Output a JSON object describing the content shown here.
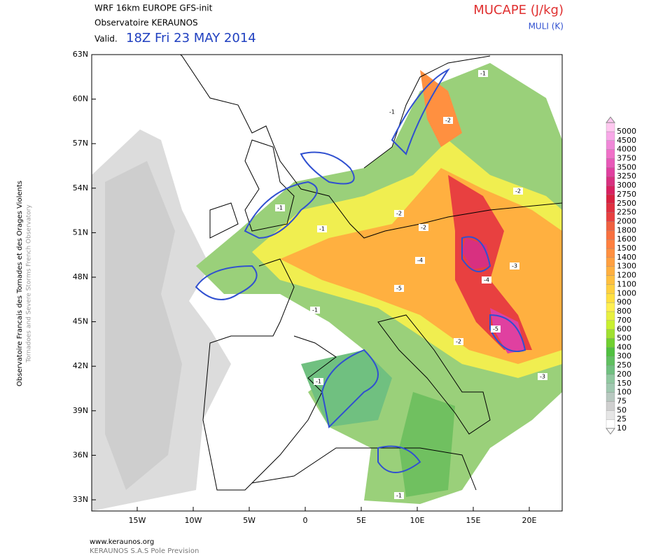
{
  "header": {
    "model": "WRF 16km EUROPE  GFS-init",
    "source": "Observatoire KERAUNOS",
    "valid_label": "Valid.",
    "valid_time": "18Z Fri 23 MAY 2014",
    "field": "MUCAPE (J/kg)",
    "contour": "MULI (K)"
  },
  "side": {
    "french": "Observatoire Francais des Tornades et des Orages Violents",
    "english": "Tornadoes and Severe Storms French Observatory"
  },
  "footer": {
    "url": "www.keraunos.org",
    "company": "KERAUNOS S.A.S Pole Prevision"
  },
  "map": {
    "lat_ticks": [
      "63N",
      "60N",
      "57N",
      "54N",
      "51N",
      "48N",
      "45N",
      "42N",
      "39N",
      "36N",
      "33N"
    ],
    "lon_ticks": [
      "15W",
      "10W",
      "5W",
      "0",
      "5E",
      "10E",
      "15E",
      "20E"
    ],
    "contour_labels": [
      "-1",
      "-1",
      "-2",
      "-1",
      "-1",
      "-2",
      "-2",
      "-4",
      "-5",
      "-3",
      "-5",
      "-4",
      "-1",
      "-2",
      "-3",
      "-2",
      "-1",
      "-1"
    ]
  },
  "colorbar": {
    "levels": [
      10,
      25,
      50,
      75,
      100,
      150,
      200,
      250,
      300,
      400,
      500,
      600,
      700,
      800,
      900,
      1000,
      1100,
      1200,
      1300,
      1400,
      1500,
      1600,
      1800,
      2000,
      2250,
      2500,
      2750,
      3000,
      3250,
      3500,
      3750,
      4000,
      4500,
      5000
    ],
    "colors": [
      "#ffffff",
      "#e6e6e6",
      "#cfcfcf",
      "#b8c8c0",
      "#a0c8b0",
      "#90c8a0",
      "#70c080",
      "#60c060",
      "#50c040",
      "#70d030",
      "#a0e030",
      "#c8f030",
      "#e8f040",
      "#fff050",
      "#ffe040",
      "#ffd040",
      "#ffc040",
      "#ffb040",
      "#ffa040",
      "#ff9040",
      "#ff8040",
      "#f87040",
      "#f06040",
      "#e84040",
      "#e03040",
      "#d82040",
      "#d82060",
      "#d83080",
      "#e040a0",
      "#e858b8",
      "#f070c8",
      "#f088d8",
      "#f8a8e8",
      "#ffc8f0"
    ]
  }
}
